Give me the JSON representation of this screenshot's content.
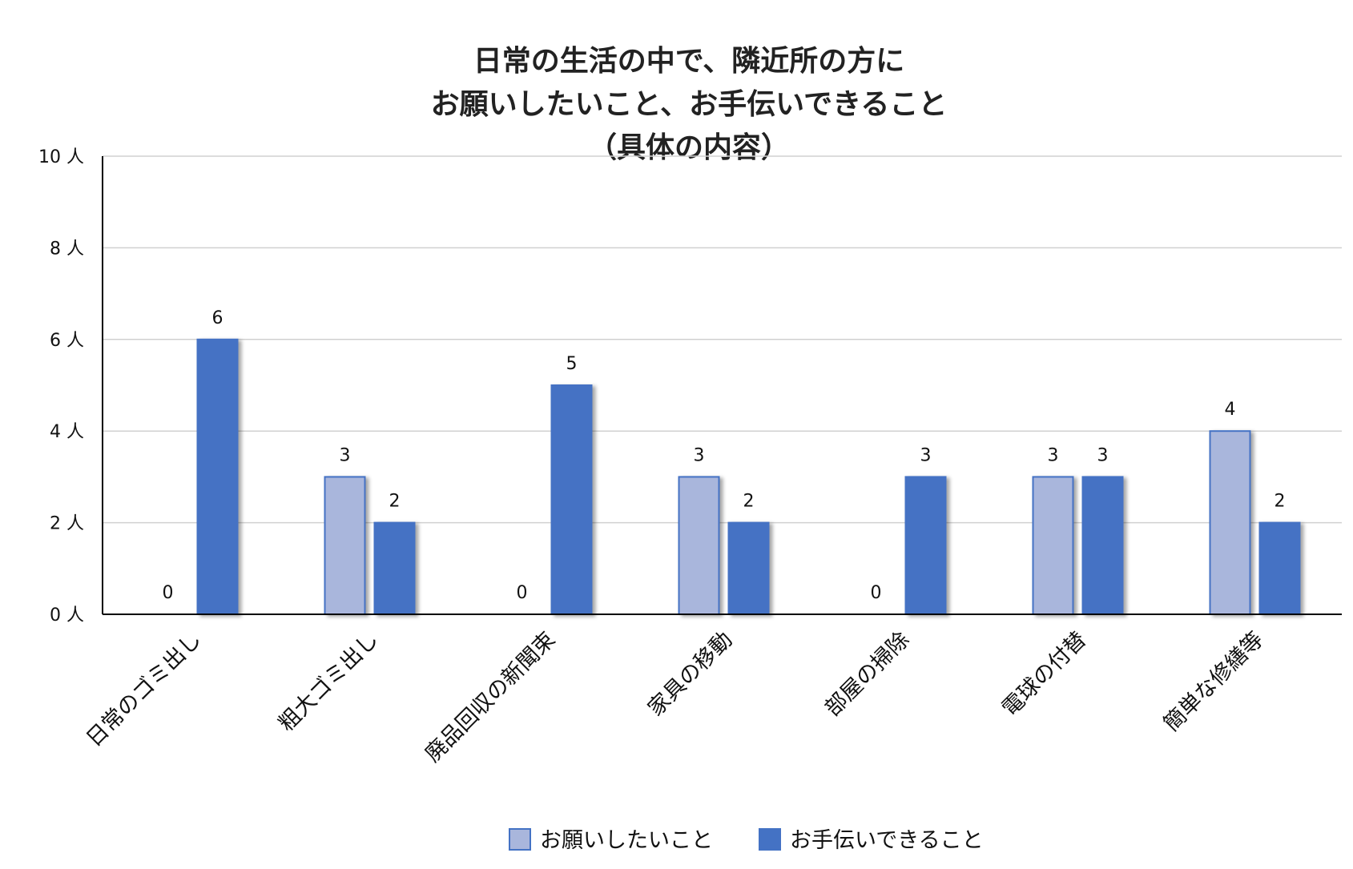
{
  "chart_data": {
    "type": "bar",
    "title_lines": [
      "日常の生活の中で、隣近所の方に",
      "お願いしたいこと、お手伝いできること",
      "（具体の内容）"
    ],
    "categories": [
      "日常のゴミ出し",
      "粗大ゴミ出し",
      "廃品回収の新聞束",
      "家具の移動",
      "部屋の掃除",
      "電球の付替",
      "簡単な修繕等"
    ],
    "series": [
      {
        "name": "お願いしたいこと",
        "color": "#a9b6dc",
        "values": [
          0,
          3,
          0,
          3,
          0,
          3,
          4
        ]
      },
      {
        "name": "お手伝いできること",
        "color": "#4472c4",
        "values": [
          6,
          2,
          5,
          2,
          3,
          3,
          2
        ]
      }
    ],
    "ylim": [
      0,
      10
    ],
    "yticks": [
      0,
      2,
      4,
      6,
      8,
      10
    ],
    "y_tick_labels": [
      "0 人",
      "2 人",
      "4 人",
      "6 人",
      "8 人",
      "10 人"
    ],
    "grid": true,
    "legend_position": "bottom-center",
    "xlabel": "",
    "ylabel": ""
  }
}
